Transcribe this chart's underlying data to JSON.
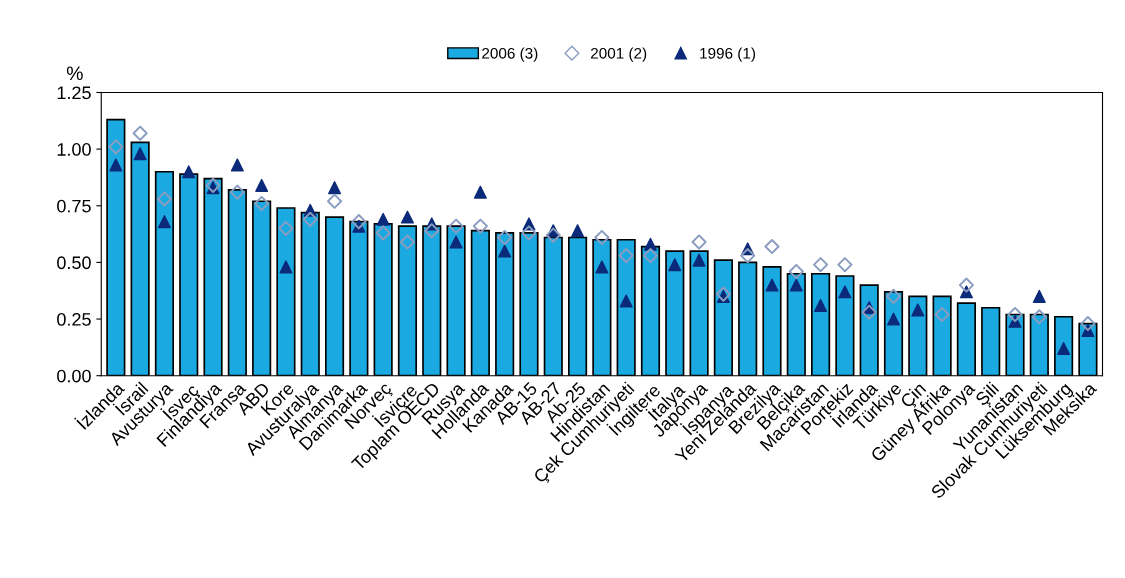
{
  "chart_data": {
    "type": "bar",
    "ylabel": "%",
    "categories": [
      "İzlanda",
      "İsrail",
      "Avusturya",
      "İsveç",
      "Finlandiya",
      "Fransa",
      "ABD",
      "Kore",
      "Avusturalya",
      "Almanya",
      "Danimarka",
      "Norveç",
      "İsviçre",
      "Toplam OECD",
      "Rusya",
      "Hollanda",
      "Kanada",
      "AB-15",
      "AB-27",
      "Ab-25",
      "Hindistan",
      "Çek Cumhuriyeti",
      "İngiltere",
      "İtalya",
      "Japonya",
      "İspanya",
      "Yeni Zelanda",
      "Brezilya",
      "Belçika",
      "Macaristan",
      "Portekiz",
      "İrlanda",
      "Türkiye",
      "Çin",
      "Güney Afrika",
      "Polonya",
      "Şili",
      "Yunanistan",
      "Slovak Cumhuriyeti",
      "Lüksemburg",
      "Meksika"
    ],
    "series": [
      {
        "name": "2006 (3)",
        "color": "#1aa9e0",
        "values": [
          1.13,
          1.03,
          0.9,
          0.89,
          0.87,
          0.82,
          0.77,
          0.74,
          0.72,
          0.7,
          0.68,
          0.67,
          0.66,
          0.66,
          0.66,
          0.64,
          0.63,
          0.63,
          0.61,
          0.61,
          0.6,
          0.6,
          0.57,
          0.55,
          0.55,
          0.51,
          0.5,
          0.48,
          0.45,
          0.45,
          0.44,
          0.4,
          0.37,
          0.35,
          0.35,
          0.32,
          0.3,
          0.27,
          0.27,
          0.26,
          0.23
        ]
      },
      {
        "name": "2001 (2)",
        "type": "scatter",
        "marker": "diamond",
        "color": "#8a9cc0",
        "values": [
          1.01,
          1.07,
          0.78,
          null,
          0.84,
          0.81,
          0.76,
          0.65,
          0.69,
          0.77,
          0.68,
          0.63,
          0.59,
          0.64,
          0.66,
          0.66,
          0.61,
          0.63,
          0.62,
          null,
          0.61,
          0.53,
          0.53,
          null,
          0.59,
          0.36,
          0.53,
          0.57,
          0.46,
          0.49,
          0.49,
          0.28,
          0.35,
          null,
          0.27,
          0.4,
          null,
          0.27,
          0.26,
          null,
          0.23
        ]
      },
      {
        "name": "1996 (1)",
        "type": "scatter",
        "marker": "triangle",
        "color": "#0b2a7a",
        "values": [
          0.93,
          0.98,
          0.68,
          0.9,
          0.83,
          0.93,
          0.84,
          0.48,
          0.73,
          0.83,
          0.66,
          0.69,
          0.7,
          0.67,
          0.59,
          0.81,
          0.55,
          0.67,
          0.64,
          0.64,
          0.48,
          0.33,
          0.58,
          0.49,
          0.51,
          0.35,
          0.56,
          0.4,
          0.4,
          0.31,
          0.37,
          0.3,
          0.25,
          0.29,
          null,
          0.37,
          null,
          0.24,
          0.35,
          0.12,
          0.2
        ]
      }
    ],
    "ylim": [
      0,
      1.25
    ],
    "yticks": [
      {
        "value": 0,
        "label": "0.00"
      },
      {
        "value": 0.25,
        "label": "0.25"
      },
      {
        "value": 0.5,
        "label": "0.50"
      },
      {
        "value": 0.75,
        "label": "0.75"
      },
      {
        "value": 1.0,
        "label": "1.00"
      },
      {
        "value": 1.25,
        "label": "1.25"
      }
    ],
    "grid": false,
    "legend": "top"
  }
}
